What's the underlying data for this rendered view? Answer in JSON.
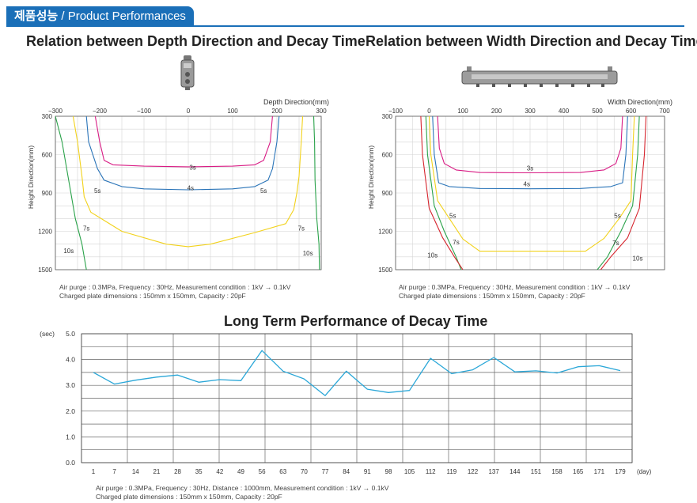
{
  "header": {
    "title_ko": "제품성능",
    "title_en": " / Product Performances"
  },
  "chart_data": [
    {
      "type": "line",
      "title": "Relation between Depth Direction and Decay Time",
      "xlabel": "Depth Direction(mm)",
      "ylabel": "Height Direction(mm)",
      "xlim": [
        -300,
        300
      ],
      "ylim": [
        300,
        1500
      ],
      "x_ticks": [
        -300,
        -200,
        -100,
        0,
        100,
        200,
        300
      ],
      "y_ticks": [
        300,
        600,
        900,
        1200,
        1500
      ],
      "y_inverted": true,
      "grid": true,
      "colors": [
        "#d81b84",
        "#2a74b8",
        "#f2d21c",
        "#2aa24a",
        "#d6252e"
      ],
      "series": [
        {
          "name": "3s",
          "points": [
            [
              -210,
              300
            ],
            [
              -200,
              500
            ],
            [
              -190,
              645
            ],
            [
              -170,
              680
            ],
            [
              -100,
              690
            ],
            [
              0,
              695
            ],
            [
              100,
              690
            ],
            [
              150,
              680
            ],
            [
              170,
              645
            ],
            [
              185,
              500
            ],
            [
              190,
              300
            ]
          ]
        },
        {
          "name": "4s",
          "points": [
            [
              -230,
              300
            ],
            [
              -225,
              500
            ],
            [
              -205,
              710
            ],
            [
              -190,
              800
            ],
            [
              -150,
              850
            ],
            [
              -100,
              868
            ],
            [
              0,
              875
            ],
            [
              100,
              868
            ],
            [
              150,
              850
            ],
            [
              180,
              800
            ],
            [
              190,
              710
            ],
            [
              200,
              500
            ],
            [
              205,
              300
            ]
          ]
        },
        {
          "name": "5s",
          "points": [
            [
              -260,
              300
            ],
            [
              -250,
              500
            ],
            [
              -240,
              770
            ],
            [
              -235,
              930
            ],
            [
              -220,
              1050
            ],
            [
              -150,
              1200
            ],
            [
              -50,
              1300
            ],
            [
              0,
              1320
            ],
            [
              50,
              1300
            ],
            [
              150,
              1210
            ],
            [
              220,
              1140
            ],
            [
              238,
              1030
            ],
            [
              245,
              900
            ],
            [
              250,
              770
            ],
            [
              255,
              500
            ],
            [
              258,
              300
            ]
          ]
        },
        {
          "name": "7s",
          "points": [
            [
              -300,
              300
            ],
            [
              -285,
              500
            ],
            [
              -270,
              800
            ],
            [
              -255,
              1100
            ],
            [
              -240,
              1300
            ],
            [
              -230,
              1500
            ]
          ]
        },
        {
          "name": "7s",
          "points": [
            [
              283,
              300
            ],
            [
              285,
              500
            ],
            [
              286,
              800
            ],
            [
              290,
              1100
            ],
            [
              295,
              1300
            ],
            [
              296,
              1500
            ]
          ]
        },
        {
          "name": "10s",
          "points": [
            [
              -320,
              300
            ],
            [
              -310,
              500
            ],
            [
              -302,
              800
            ],
            [
              -305,
              1100
            ],
            [
              -310,
              1300
            ],
            [
              -315,
              1500
            ]
          ]
        },
        {
          "name": "10s",
          "points": [
            [
              305,
              300
            ],
            [
              310,
              500
            ],
            [
              315,
              800
            ],
            [
              318,
              1100
            ],
            [
              320,
              1300
            ],
            [
              322,
              1500
            ]
          ]
        }
      ],
      "labels": [
        {
          "text": "3s",
          "x": 10,
          "y": 700
        },
        {
          "text": "4s",
          "x": 5,
          "y": 860
        },
        {
          "text": "5s",
          "x": -205,
          "y": 880
        },
        {
          "text": "5s",
          "x": 170,
          "y": 880
        },
        {
          "text": "7s",
          "x": -230,
          "y": 1175
        },
        {
          "text": "7s",
          "x": 255,
          "y": 1175
        },
        {
          "text": "10s",
          "x": -270,
          "y": 1350
        },
        {
          "text": "10s",
          "x": 270,
          "y": 1370
        }
      ],
      "note": [
        "Air purge : 0.3MPa, Frequency : 30Hz, Measurement condition : 1kV → 0.1kV",
        "Charged plate dimensions : 150mm x 150mm, Capacity : 20pF"
      ]
    },
    {
      "type": "line",
      "title": "Relation between Width Direction and Decay Time",
      "xlabel": "Width Direction(mm)",
      "ylabel": "Height Direction(mm)",
      "xlim": [
        -100,
        700
      ],
      "ylim": [
        300,
        1500
      ],
      "x_ticks": [
        -100,
        0,
        100,
        200,
        300,
        400,
        500,
        600,
        700
      ],
      "y_ticks": [
        300,
        600,
        900,
        1200,
        1500
      ],
      "y_inverted": true,
      "grid": true,
      "colors": [
        "#d81b84",
        "#2a74b8",
        "#f2d21c",
        "#2aa24a",
        "#d6252e"
      ],
      "series": [
        {
          "name": "3s",
          "points": [
            [
              25,
              300
            ],
            [
              30,
              550
            ],
            [
              45,
              670
            ],
            [
              80,
              720
            ],
            [
              150,
              740
            ],
            [
              300,
              742
            ],
            [
              450,
              740
            ],
            [
              520,
              720
            ],
            [
              555,
              670
            ],
            [
              570,
              550
            ],
            [
              575,
              300
            ]
          ]
        },
        {
          "name": "4s",
          "points": [
            [
              10,
              300
            ],
            [
              15,
              600
            ],
            [
              28,
              820
            ],
            [
              60,
              850
            ],
            [
              150,
              865
            ],
            [
              300,
              867
            ],
            [
              450,
              865
            ],
            [
              540,
              850
            ],
            [
              575,
              820
            ],
            [
              585,
              600
            ],
            [
              590,
              300
            ]
          ]
        },
        {
          "name": "5s",
          "points": [
            [
              0,
              300
            ],
            [
              5,
              600
            ],
            [
              25,
              960
            ],
            [
              60,
              1100
            ],
            [
              100,
              1260
            ],
            [
              150,
              1355
            ],
            [
              300,
              1355
            ],
            [
              465,
              1355
            ],
            [
              520,
              1255
            ],
            [
              565,
              1100
            ],
            [
              600,
              960
            ],
            [
              605,
              600
            ],
            [
              610,
              300
            ]
          ]
        },
        {
          "name": "7s",
          "points": [
            [
              -10,
              300
            ],
            [
              -5,
              600
            ],
            [
              15,
              1000
            ],
            [
              45,
              1200
            ],
            [
              80,
              1400
            ],
            [
              95,
              1500
            ]
          ]
        },
        {
          "name": "7s",
          "points": [
            [
              500,
              1500
            ],
            [
              530,
              1400
            ],
            [
              570,
              1200
            ],
            [
              605,
              1000
            ],
            [
              620,
              600
            ],
            [
              625,
              300
            ]
          ]
        },
        {
          "name": "10s",
          "points": [
            [
              -25,
              300
            ],
            [
              -20,
              600
            ],
            [
              0,
              1020
            ],
            [
              40,
              1250
            ],
            [
              75,
              1400
            ],
            [
              100,
              1500
            ]
          ]
        },
        {
          "name": "10s",
          "points": [
            [
              510,
              1500
            ],
            [
              540,
              1400
            ],
            [
              590,
              1250
            ],
            [
              625,
              1020
            ],
            [
              640,
              600
            ],
            [
              645,
              300
            ]
          ]
        }
      ],
      "labels": [
        {
          "text": "3s",
          "x": 300,
          "y": 705
        },
        {
          "text": "4s",
          "x": 290,
          "y": 830
        },
        {
          "text": "5s",
          "x": 70,
          "y": 1075
        },
        {
          "text": "5s",
          "x": 560,
          "y": 1075
        },
        {
          "text": "7s",
          "x": 80,
          "y": 1285
        },
        {
          "text": "7s",
          "x": 555,
          "y": 1290
        },
        {
          "text": "10s",
          "x": 10,
          "y": 1385
        },
        {
          "text": "10s",
          "x": 620,
          "y": 1410
        }
      ],
      "note": [
        "Air purge : 0.3MPa, Frequency : 30Hz, Measurement condition : 1kV → 0.1kV",
        "Charged plate dimensions : 150mm x 150mm, Capacity : 20pF"
      ]
    },
    {
      "type": "line",
      "title": "Long Term Performance of Decay Time",
      "ylabel": "(sec)",
      "xlabel": "(day)",
      "ylim": [
        0,
        5
      ],
      "y_ticks": [
        "0.0",
        "1.0",
        "2.0",
        "3.0",
        "4.0",
        "5.0"
      ],
      "grid": true,
      "categories": [
        "1",
        "7",
        "14",
        "21",
        "28",
        "35",
        "42",
        "49",
        "56",
        "63",
        "70",
        "77",
        "84",
        "91",
        "98",
        "105",
        "112",
        "119",
        "122",
        "137",
        "144",
        "151",
        "158",
        "165",
        "171",
        "179"
      ],
      "series": [
        {
          "name": "",
          "color": "#2aa7d8",
          "values": [
            3.5,
            3.05,
            3.2,
            3.32,
            3.4,
            3.12,
            3.22,
            3.18,
            4.35,
            3.55,
            3.25,
            2.6,
            3.55,
            2.85,
            2.72,
            2.8,
            4.05,
            3.45,
            3.6,
            4.08,
            3.52,
            3.56,
            3.48,
            3.72,
            3.76,
            3.57
          ]
        }
      ],
      "note": [
        "Air purge : 0.3MPa, Frequency : 30Hz, Distance : 1000mm, Measurement condition : 1kV → 0.1kV",
        "Charged plate dimensions : 150mm x 150mm, Capacity : 20pF"
      ]
    }
  ]
}
